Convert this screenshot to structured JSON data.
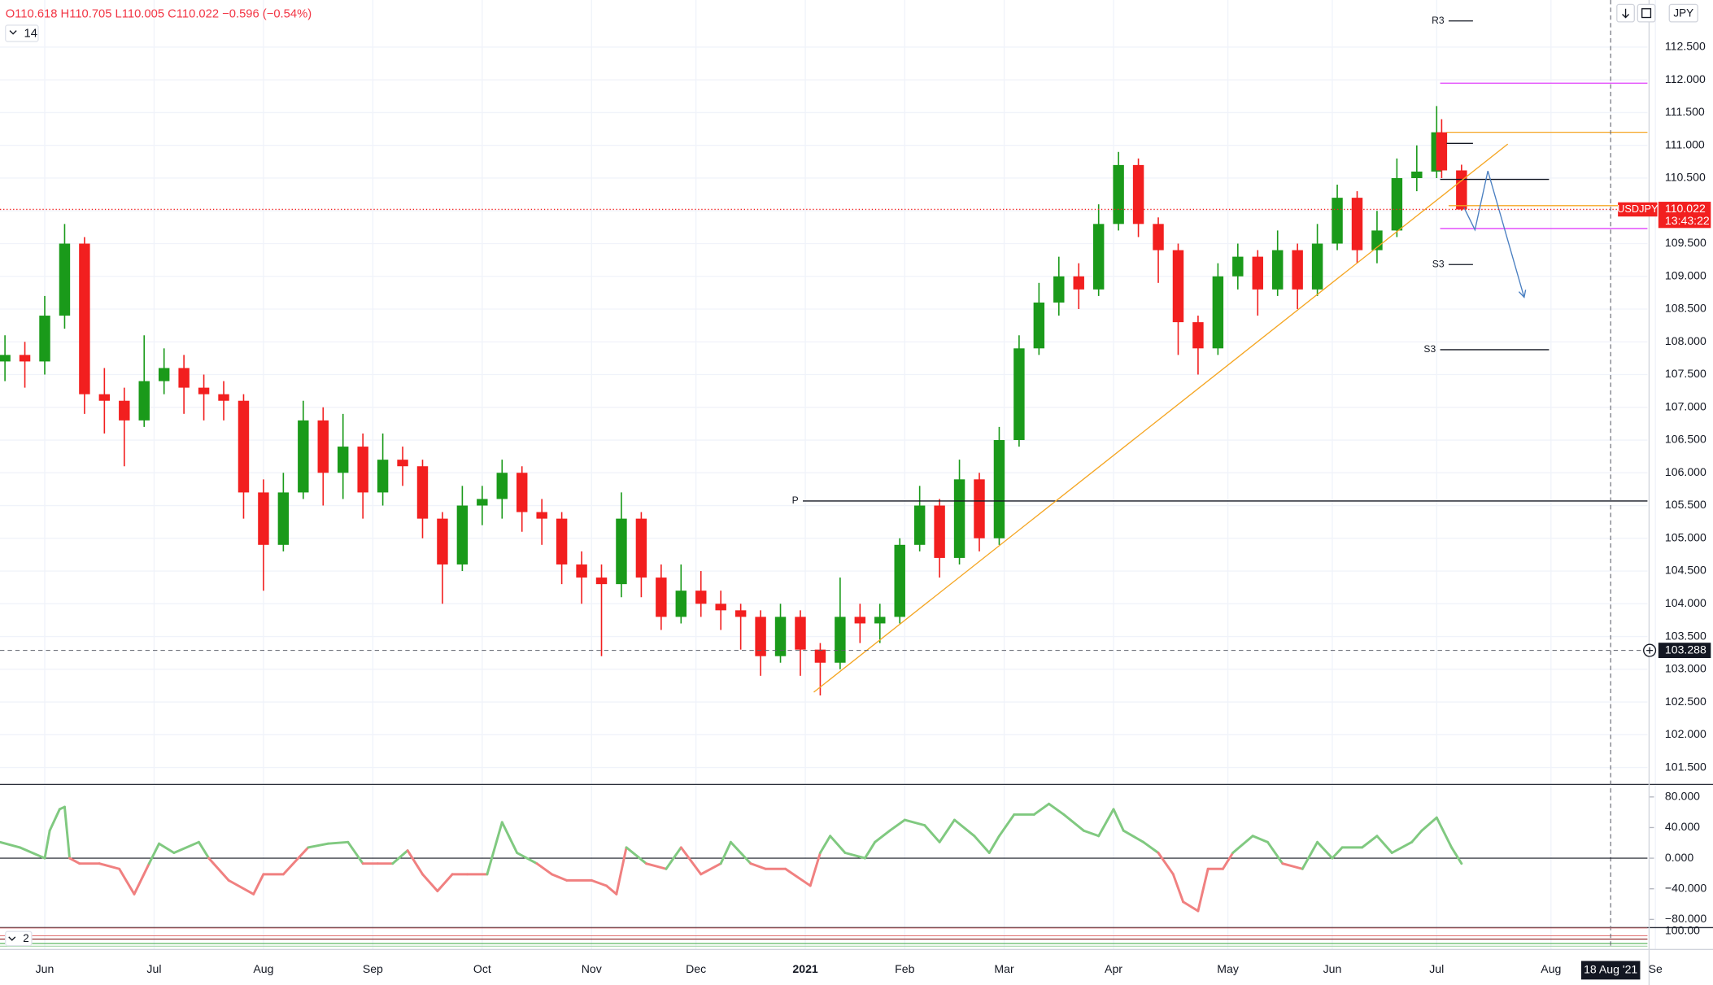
{
  "header": {
    "ohlc": "O110.618 H110.705 L110.005 C110.022 −0.596 (−0.54%)",
    "indicator_param": "14",
    "currency": "JPY"
  },
  "chart_data": [
    {
      "type": "candlestick",
      "up_color": "#1a9a1a",
      "down_color": "#f21f1f",
      "xlim": [
        -9,
        322.4
      ],
      "ylim": [
        101.25,
        113.22
      ],
      "grid": true,
      "xticks": [
        {
          "value": 0,
          "label": "Jun"
        },
        {
          "value": 22,
          "label": "Jul"
        },
        {
          "value": 44,
          "label": "Aug"
        },
        {
          "value": 66,
          "label": "Sep"
        },
        {
          "value": 88,
          "label": "Oct"
        },
        {
          "value": 110,
          "label": "Nov"
        },
        {
          "value": 131,
          "label": "Dec"
        },
        {
          "value": 153,
          "label": "2021"
        },
        {
          "value": 173,
          "label": "Feb"
        },
        {
          "value": 193,
          "label": "Mar"
        },
        {
          "value": 215,
          "label": "Apr"
        },
        {
          "value": 238,
          "label": "May"
        },
        {
          "value": 259,
          "label": "Jun"
        },
        {
          "value": 280,
          "label": "Jul"
        },
        {
          "value": 303,
          "label": "Aug"
        },
        {
          "value": 324,
          "label": "Se"
        }
      ],
      "yticks": [
        {
          "value": 112.5,
          "label": "112.500"
        },
        {
          "value": 112,
          "label": "112.000"
        },
        {
          "value": 111.5,
          "label": "111.500"
        },
        {
          "value": 111,
          "label": "111.000"
        },
        {
          "value": 110.5,
          "label": "110.500"
        },
        {
          "value": 110,
          "label": "110.000"
        },
        {
          "value": 109.5,
          "label": "109.500"
        },
        {
          "value": 109,
          "label": "109.000"
        },
        {
          "value": 108.5,
          "label": "108.500"
        },
        {
          "value": 108,
          "label": "108.000"
        },
        {
          "value": 107.5,
          "label": "107.500"
        },
        {
          "value": 107,
          "label": "107.000"
        },
        {
          "value": 106.5,
          "label": "106.500"
        },
        {
          "value": 106,
          "label": "106.000"
        },
        {
          "value": 105.5,
          "label": "105.500"
        },
        {
          "value": 105,
          "label": "105.000"
        },
        {
          "value": 104.5,
          "label": "104.500"
        },
        {
          "value": 104,
          "label": "104.000"
        },
        {
          "value": 103.5,
          "label": "103.500"
        },
        {
          "value": 103,
          "label": "103.000"
        },
        {
          "value": 102.5,
          "label": "102.500"
        },
        {
          "value": 102,
          "label": "102.000"
        },
        {
          "value": 101.5,
          "label": "101.500"
        }
      ],
      "x": [
        -8,
        -4,
        0,
        4,
        8,
        12,
        16,
        20,
        24,
        28,
        32,
        36,
        40,
        44,
        48,
        52,
        56,
        60,
        64,
        68,
        72,
        76,
        80,
        84,
        88,
        92,
        96,
        100,
        104,
        108,
        112,
        116,
        120,
        124,
        128,
        132,
        136,
        140,
        144,
        148,
        152,
        156,
        160,
        164,
        168,
        172,
        176,
        180,
        184,
        188,
        192,
        196,
        200,
        204,
        208,
        212,
        216,
        220,
        224,
        228,
        232,
        236,
        240,
        244,
        248,
        252,
        256,
        260,
        264,
        268,
        272,
        276,
        280,
        281,
        285
      ],
      "open": [
        107.7,
        107.8,
        107.7,
        108.4,
        109.5,
        107.2,
        107.1,
        106.8,
        107.4,
        107.6,
        107.3,
        107.2,
        107.1,
        105.7,
        104.9,
        105.7,
        106.8,
        106.0,
        106.4,
        105.7,
        106.2,
        106.1,
        105.3,
        104.6,
        105.5,
        105.6,
        106.0,
        105.4,
        105.3,
        104.6,
        104.4,
        104.3,
        105.3,
        104.4,
        103.8,
        104.2,
        104.0,
        103.9,
        103.8,
        103.2,
        103.8,
        103.3,
        103.1,
        103.8,
        103.7,
        103.8,
        104.9,
        105.5,
        104.7,
        105.9,
        105.0,
        106.5,
        107.9,
        108.6,
        109.0,
        108.8,
        109.8,
        110.7,
        109.8,
        109.4,
        108.3,
        107.9,
        109.0,
        109.3,
        108.8,
        109.4,
        108.8,
        109.5,
        110.2,
        109.4,
        109.7,
        110.5,
        110.6,
        111.2,
        110.618
      ],
      "high": [
        108.1,
        108.0,
        108.7,
        109.8,
        109.6,
        107.6,
        107.3,
        108.1,
        107.9,
        107.8,
        107.5,
        107.4,
        107.2,
        105.9,
        106.0,
        107.1,
        107.0,
        106.9,
        106.6,
        106.6,
        106.4,
        106.2,
        105.4,
        105.8,
        105.8,
        106.2,
        106.1,
        105.6,
        105.4,
        104.8,
        104.6,
        105.7,
        105.4,
        104.6,
        104.6,
        104.5,
        104.2,
        104.0,
        103.9,
        104.0,
        103.9,
        103.4,
        104.4,
        104.0,
        104.0,
        105.0,
        105.8,
        105.6,
        106.2,
        106.0,
        106.7,
        108.1,
        108.9,
        109.3,
        109.2,
        110.1,
        110.9,
        110.8,
        109.9,
        109.5,
        108.4,
        109.2,
        109.5,
        109.4,
        109.7,
        109.5,
        109.8,
        110.4,
        110.3,
        110.0,
        110.8,
        111.0,
        111.6,
        111.4,
        110.705
      ],
      "low": [
        107.4,
        107.3,
        107.5,
        108.2,
        106.9,
        106.6,
        106.1,
        106.7,
        107.2,
        106.9,
        106.8,
        106.8,
        105.3,
        104.2,
        104.8,
        105.6,
        105.5,
        105.6,
        105.3,
        105.5,
        105.8,
        105.0,
        104.0,
        104.5,
        105.2,
        105.3,
        105.1,
        104.9,
        104.3,
        104.0,
        103.2,
        104.1,
        104.1,
        103.6,
        103.7,
        103.8,
        103.6,
        103.3,
        102.9,
        103.1,
        102.9,
        102.6,
        103.0,
        103.4,
        103.4,
        103.7,
        104.8,
        104.4,
        104.6,
        104.8,
        104.9,
        106.4,
        107.8,
        108.4,
        108.5,
        108.7,
        109.7,
        109.6,
        108.9,
        107.8,
        107.5,
        107.8,
        108.8,
        108.4,
        108.7,
        108.5,
        108.7,
        109.4,
        109.2,
        109.2,
        109.6,
        110.3,
        110.5,
        110.5,
        110.005
      ],
      "close": [
        107.8,
        107.7,
        108.4,
        109.5,
        107.2,
        107.1,
        106.8,
        107.4,
        107.6,
        107.3,
        107.2,
        107.1,
        105.7,
        104.9,
        105.7,
        106.8,
        106.0,
        106.4,
        105.7,
        106.2,
        106.1,
        105.3,
        104.6,
        105.5,
        105.6,
        106.0,
        105.4,
        105.3,
        104.6,
        104.4,
        104.3,
        105.3,
        104.4,
        103.8,
        104.2,
        104.0,
        103.9,
        103.8,
        103.2,
        103.8,
        103.3,
        103.1,
        103.8,
        103.7,
        103.8,
        104.9,
        105.5,
        104.7,
        105.9,
        105.0,
        106.5,
        107.9,
        108.6,
        109.0,
        108.8,
        109.8,
        110.7,
        109.8,
        109.4,
        108.3,
        107.9,
        109.0,
        109.3,
        108.8,
        109.4,
        108.8,
        109.5,
        110.2,
        109.4,
        109.7,
        110.5,
        110.6,
        111.2,
        110.618,
        110.022
      ],
      "levels": [
        {
          "label": "R3",
          "value": 112.9,
          "x": [
            282.4,
            287.3
          ],
          "color": "#131722"
        },
        {
          "value": 111.95,
          "x": [
            280.7,
            322.4
          ],
          "color": "#e040fb"
        },
        {
          "value": 111.2,
          "x": [
            282,
            322.4
          ],
          "color": "#f5a623"
        },
        {
          "value": 111.03,
          "x": [
            282,
            287.3
          ],
          "color": "#131722"
        },
        {
          "value": 110.48,
          "x": [
            280.7,
            302.6
          ],
          "color": "#131722"
        },
        {
          "value": 110.08,
          "x": [
            282.4,
            322.4
          ],
          "color": "#f5a623"
        },
        {
          "value": 109.73,
          "x": [
            280.7,
            322.4
          ],
          "color": "#e040fb"
        },
        {
          "label": "S3",
          "value": 109.18,
          "x": [
            282.4,
            287.3
          ],
          "color": "#131722"
        },
        {
          "label": "S3",
          "value": 107.88,
          "x": [
            280.7,
            302.6
          ],
          "color": "#131722"
        },
        {
          "label": "P",
          "value": 105.57,
          "x": [
            152.5,
            322.4
          ],
          "color": "#131722"
        }
      ],
      "trendline": {
        "x": [
          154.7,
          294.3
        ],
        "values": [
          102.65,
          111.02
        ],
        "color": "#f5a623"
      },
      "projection": {
        "x": [
          285.5,
          287.7,
          290.3,
          297.6
        ],
        "values": [
          110.05,
          109.71,
          110.61,
          108.68
        ],
        "color": "#4a7fc1"
      },
      "last": {
        "symbol": "USDJPY",
        "value": 110.022,
        "countdown": "13:43:22",
        "color": "#f21f1f"
      },
      "crosshair": {
        "value": 103.288,
        "x": {
          "value": 315,
          "label": "18 Aug '21"
        }
      }
    },
    {
      "type": "line",
      "above_color": "#80c980",
      "below_color": "#f08080",
      "ylim": [
        -90,
        95.7
      ],
      "yticks": [
        {
          "value": 80,
          "label": "80.000"
        },
        {
          "value": 40,
          "label": "40.000"
        },
        {
          "value": 0,
          "label": "0.000"
        },
        {
          "value": -40,
          "label": "−40.000"
        },
        {
          "value": -80,
          "label": "−80.000"
        }
      ],
      "x": [
        -9,
        -5,
        0,
        1,
        3,
        4,
        5,
        7,
        11,
        15,
        18,
        21,
        23,
        26,
        31,
        33,
        37,
        42,
        44,
        48,
        53,
        57,
        61,
        64,
        67,
        70,
        73,
        76,
        79,
        82,
        85,
        89,
        92,
        95,
        99,
        102,
        105,
        110,
        113,
        115,
        117,
        121,
        125,
        128,
        132,
        136,
        138,
        142,
        145,
        149,
        154,
        156,
        158,
        161,
        165,
        167,
        170,
        173,
        177,
        180,
        183,
        187,
        190,
        192,
        195,
        199,
        202,
        205,
        209,
        212,
        215,
        217,
        221,
        224,
        227,
        229,
        232,
        234,
        237,
        239,
        243,
        246,
        249,
        253,
        256,
        259,
        261,
        265,
        268,
        271,
        275,
        277,
        280,
        283,
        285
      ],
      "values": [
        21,
        14,
        0,
        36,
        64,
        67,
        0,
        -7,
        -7,
        -14,
        -47,
        -7,
        19,
        7,
        21,
        0,
        -29,
        -47,
        -21,
        -21,
        14,
        19,
        21,
        -7,
        -7,
        -7,
        10,
        -21,
        -43,
        -21,
        -21,
        -21,
        47,
        7,
        -7,
        -21,
        -29,
        -29,
        -36,
        -47,
        14,
        -7,
        -14,
        14,
        -21,
        -7,
        21,
        -7,
        -14,
        -14,
        -36,
        7,
        29,
        7,
        0,
        21,
        36,
        50,
        43,
        21,
        50,
        29,
        7,
        29,
        57,
        57,
        71,
        57,
        36,
        29,
        64,
        36,
        21,
        7,
        -21,
        -57,
        -69,
        -14,
        -14,
        7,
        29,
        21,
        -7,
        -14,
        21,
        0,
        14,
        14,
        29,
        7,
        21,
        36,
        53,
        14,
        -7
      ]
    },
    {
      "type": "indicator",
      "label": "2",
      "ylim": [
        -10,
        105
      ],
      "yticks": [
        {
          "value": 100,
          "label": "100.00"
        }
      ]
    }
  ]
}
